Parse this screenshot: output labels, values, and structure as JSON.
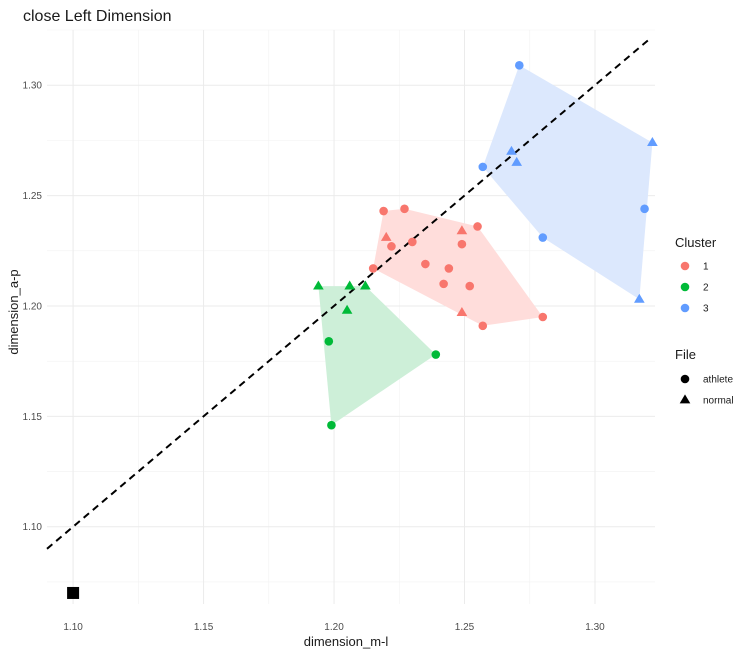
{
  "chart_data": {
    "type": "scatter",
    "title": "close Left Dimension",
    "xlabel": "dimension_m-l",
    "ylabel": "dimension_a-p",
    "xlim": [
      1.09,
      1.323
    ],
    "ylim": [
      1.065,
      1.325
    ],
    "x_ticks": [
      "1.10",
      "1.15",
      "1.20",
      "1.25",
      "1.30"
    ],
    "y_ticks": [
      "1.10",
      "1.15",
      "1.20",
      "1.25",
      "1.30"
    ],
    "grid": true,
    "legend_placement": "right",
    "reference_line": {
      "style": "dashed",
      "slope": 1,
      "intercept": 0
    },
    "cluster_legend": {
      "title": "Cluster",
      "items": [
        {
          "label": "1",
          "color": "#F8766D"
        },
        {
          "label": "2",
          "color": "#00BA38"
        },
        {
          "label": "3",
          "color": "#619CFF"
        }
      ]
    },
    "file_legend": {
      "title": "File",
      "items": [
        {
          "label": "athlete",
          "shape": "circle"
        },
        {
          "label": "normal",
          "shape": "triangle"
        }
      ]
    },
    "series": [
      {
        "cluster": "1",
        "color": "#F8766D",
        "hull_fill": "#FFDDDB",
        "points": [
          {
            "x": 1.219,
            "y": 1.243,
            "file": "athlete"
          },
          {
            "x": 1.227,
            "y": 1.244,
            "file": "athlete"
          },
          {
            "x": 1.215,
            "y": 1.217,
            "file": "athlete"
          },
          {
            "x": 1.222,
            "y": 1.227,
            "file": "athlete"
          },
          {
            "x": 1.23,
            "y": 1.229,
            "file": "athlete"
          },
          {
            "x": 1.235,
            "y": 1.219,
            "file": "athlete"
          },
          {
            "x": 1.242,
            "y": 1.21,
            "file": "athlete"
          },
          {
            "x": 1.244,
            "y": 1.217,
            "file": "athlete"
          },
          {
            "x": 1.249,
            "y": 1.228,
            "file": "athlete"
          },
          {
            "x": 1.252,
            "y": 1.209,
            "file": "athlete"
          },
          {
            "x": 1.255,
            "y": 1.236,
            "file": "athlete"
          },
          {
            "x": 1.257,
            "y": 1.191,
            "file": "athlete"
          },
          {
            "x": 1.28,
            "y": 1.195,
            "file": "athlete"
          },
          {
            "x": 1.22,
            "y": 1.231,
            "file": "normal"
          },
          {
            "x": 1.249,
            "y": 1.234,
            "file": "normal"
          },
          {
            "x": 1.249,
            "y": 1.197,
            "file": "normal"
          }
        ]
      },
      {
        "cluster": "2",
        "color": "#00BA38",
        "hull_fill": "#CDEFD8",
        "points": [
          {
            "x": 1.198,
            "y": 1.184,
            "file": "athlete"
          },
          {
            "x": 1.199,
            "y": 1.146,
            "file": "athlete"
          },
          {
            "x": 1.239,
            "y": 1.178,
            "file": "athlete"
          },
          {
            "x": 1.194,
            "y": 1.209,
            "file": "normal"
          },
          {
            "x": 1.206,
            "y": 1.209,
            "file": "normal"
          },
          {
            "x": 1.212,
            "y": 1.209,
            "file": "normal"
          },
          {
            "x": 1.205,
            "y": 1.198,
            "file": "normal"
          }
        ]
      },
      {
        "cluster": "3",
        "color": "#619CFF",
        "hull_fill": "#DCE8FD",
        "points": [
          {
            "x": 1.271,
            "y": 1.309,
            "file": "athlete"
          },
          {
            "x": 1.257,
            "y": 1.263,
            "file": "athlete"
          },
          {
            "x": 1.28,
            "y": 1.231,
            "file": "athlete"
          },
          {
            "x": 1.319,
            "y": 1.244,
            "file": "athlete"
          },
          {
            "x": 1.268,
            "y": 1.27,
            "file": "normal"
          },
          {
            "x": 1.27,
            "y": 1.265,
            "file": "normal"
          },
          {
            "x": 1.322,
            "y": 1.274,
            "file": "normal"
          },
          {
            "x": 1.317,
            "y": 1.203,
            "file": "normal"
          }
        ]
      }
    ],
    "extra_points": [
      {
        "x": 1.1,
        "y": 1.07,
        "shape": "square",
        "color": "#000000"
      }
    ]
  }
}
